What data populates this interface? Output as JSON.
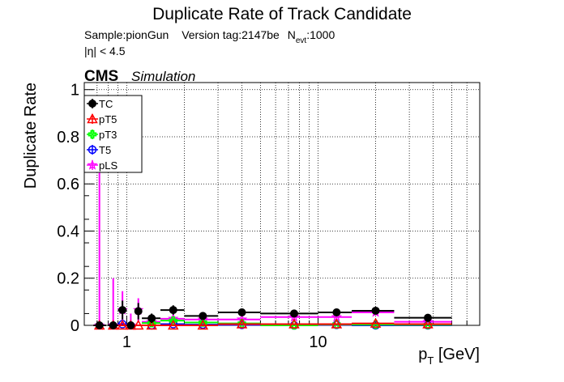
{
  "chart_data": {
    "type": "scatter",
    "title": "Duplicate Rate of Track Candidate",
    "info_line1": {
      "sample": "Sample:pionGun",
      "version": "Version tag:2147be",
      "nevt_prefix": "N",
      "nevt_sub": "evt",
      "nevt_value": ":1000"
    },
    "info_line2": "|η| < 4.5",
    "cms_label": "CMS",
    "cms_sublabel": "Simulation",
    "xlabel": {
      "main": "p",
      "sub": "T",
      "unit": " [GeV]"
    },
    "ylabel": "Duplicate Rate",
    "xscale": "log",
    "xlim": [
      0.6,
      70
    ],
    "ylim": [
      0,
      1.03
    ],
    "grid": true,
    "legend_position": "top-left",
    "x_ticks": [
      {
        "value": 1,
        "label": "1"
      },
      {
        "value": 10,
        "label": "10"
      }
    ],
    "y_ticks": [
      {
        "value": 0,
        "label": "0"
      },
      {
        "value": 0.2,
        "label": "0.2"
      },
      {
        "value": 0.4,
        "label": "0.4"
      },
      {
        "value": 0.6,
        "label": "0.6"
      },
      {
        "value": 0.8,
        "label": "0.8"
      },
      {
        "value": 1,
        "label": "1"
      }
    ],
    "series": [
      {
        "name": "TC",
        "color": "#000000",
        "marker": "filled-circle",
        "points": [
          {
            "x": 0.72,
            "xlo": 0.67,
            "xhi": 0.78,
            "y": 0.0,
            "err": 0.0
          },
          {
            "x": 0.85,
            "xlo": 0.8,
            "xhi": 0.9,
            "y": 0.0,
            "err": 0.0
          },
          {
            "x": 0.95,
            "xlo": 0.9,
            "xhi": 1.0,
            "y": 0.065,
            "err": 0.04
          },
          {
            "x": 1.05,
            "xlo": 1.0,
            "xhi": 1.1,
            "y": 0.0,
            "err": 0.0
          },
          {
            "x": 1.15,
            "xlo": 1.1,
            "xhi": 1.2,
            "y": 0.06,
            "err": 0.035
          },
          {
            "x": 1.35,
            "xlo": 1.2,
            "xhi": 1.5,
            "y": 0.03,
            "err": 0.02
          },
          {
            "x": 1.75,
            "xlo": 1.5,
            "xhi": 2.0,
            "y": 0.065,
            "err": 0.02
          },
          {
            "x": 2.5,
            "xlo": 2.0,
            "xhi": 3.0,
            "y": 0.04,
            "err": 0.012
          },
          {
            "x": 4.0,
            "xlo": 3.0,
            "xhi": 5.0,
            "y": 0.055,
            "err": 0.01
          },
          {
            "x": 7.5,
            "xlo": 5.0,
            "xhi": 10.0,
            "y": 0.05,
            "err": 0.008
          },
          {
            "x": 12.5,
            "xlo": 10.0,
            "xhi": 15.0,
            "y": 0.055,
            "err": 0.008
          },
          {
            "x": 20.0,
            "xlo": 15.0,
            "xhi": 25.0,
            "y": 0.062,
            "err": 0.008
          },
          {
            "x": 37.5,
            "xlo": 25.0,
            "xhi": 50.0,
            "y": 0.032,
            "err": 0.006
          }
        ]
      },
      {
        "name": "pT5",
        "color": "#ff0000",
        "marker": "open-triangle",
        "points": [
          {
            "x": 0.72,
            "xlo": 0.67,
            "xhi": 0.78,
            "y": 0.0,
            "err": 0.0
          },
          {
            "x": 0.85,
            "xlo": 0.8,
            "xhi": 0.9,
            "y": 0.0,
            "err": 0.0
          },
          {
            "x": 0.95,
            "xlo": 0.9,
            "xhi": 1.0,
            "y": 0.0,
            "err": 0.0
          },
          {
            "x": 1.05,
            "xlo": 1.0,
            "xhi": 1.1,
            "y": 0.0,
            "err": 0.0
          },
          {
            "x": 1.15,
            "xlo": 1.1,
            "xhi": 1.2,
            "y": 0.0,
            "err": 0.0
          },
          {
            "x": 1.35,
            "xlo": 1.2,
            "xhi": 1.5,
            "y": 0.0,
            "err": 0.0
          },
          {
            "x": 1.75,
            "xlo": 1.5,
            "xhi": 2.0,
            "y": 0.0,
            "err": 0.0
          },
          {
            "x": 2.5,
            "xlo": 2.0,
            "xhi": 3.0,
            "y": 0.0,
            "err": 0.0
          },
          {
            "x": 4.0,
            "xlo": 3.0,
            "xhi": 5.0,
            "y": 0.005,
            "err": 0.0
          },
          {
            "x": 7.5,
            "xlo": 5.0,
            "xhi": 10.0,
            "y": 0.005,
            "err": 0.0
          },
          {
            "x": 12.5,
            "xlo": 10.0,
            "xhi": 15.0,
            "y": 0.005,
            "err": 0.0
          },
          {
            "x": 20.0,
            "xlo": 15.0,
            "xhi": 25.0,
            "y": 0.008,
            "err": 0.0
          },
          {
            "x": 37.5,
            "xlo": 25.0,
            "xhi": 50.0,
            "y": 0.005,
            "err": 0.0
          }
        ]
      },
      {
        "name": "pT3",
        "color": "#00ff00",
        "marker": "open-cross",
        "points": [
          {
            "x": 1.35,
            "xlo": 1.2,
            "xhi": 1.5,
            "y": 0.01,
            "err": 0.008
          },
          {
            "x": 1.75,
            "xlo": 1.5,
            "xhi": 2.0,
            "y": 0.02,
            "err": 0.01
          },
          {
            "x": 2.5,
            "xlo": 2.0,
            "xhi": 3.0,
            "y": 0.012,
            "err": 0.005
          },
          {
            "x": 4.0,
            "xlo": 3.0,
            "xhi": 5.0,
            "y": 0.008,
            "err": 0.004
          },
          {
            "x": 7.5,
            "xlo": 5.0,
            "xhi": 10.0,
            "y": 0.0,
            "err": 0.0
          },
          {
            "x": 12.5,
            "xlo": 10.0,
            "xhi": 15.0,
            "y": 0.004,
            "err": 0.002
          },
          {
            "x": 20.0,
            "xlo": 15.0,
            "xhi": 25.0,
            "y": 0.003,
            "err": 0.002
          },
          {
            "x": 37.5,
            "xlo": 25.0,
            "xhi": 50.0,
            "y": 0.002,
            "err": 0.001
          }
        ]
      },
      {
        "name": "T5",
        "color": "#0000ff",
        "marker": "open-circle",
        "points": [
          {
            "x": 0.95,
            "xlo": 0.9,
            "xhi": 1.0,
            "y": 0.005,
            "err": 0.0
          },
          {
            "x": 1.35,
            "xlo": 1.2,
            "xhi": 1.5,
            "y": 0.0,
            "err": 0.0
          },
          {
            "x": 1.75,
            "xlo": 1.5,
            "xhi": 2.0,
            "y": 0.005,
            "err": 0.0
          },
          {
            "x": 2.5,
            "xlo": 2.0,
            "xhi": 3.0,
            "y": 0.003,
            "err": 0.0
          },
          {
            "x": 4.0,
            "xlo": 3.0,
            "xhi": 5.0,
            "y": 0.002,
            "err": 0.0
          },
          {
            "x": 7.5,
            "xlo": 5.0,
            "xhi": 10.0,
            "y": 0.0,
            "err": 0.0
          },
          {
            "x": 12.5,
            "xlo": 10.0,
            "xhi": 15.0,
            "y": 0.002,
            "err": 0.0
          },
          {
            "x": 20.0,
            "xlo": 15.0,
            "xhi": 25.0,
            "y": 0.0,
            "err": 0.0
          },
          {
            "x": 37.5,
            "xlo": 25.0,
            "xhi": 50.0,
            "y": 0.0,
            "err": 0.0
          }
        ]
      },
      {
        "name": "pLS",
        "color": "#ff00ff",
        "marker": "open-star",
        "points": [
          {
            "x": 0.72,
            "xlo": 0.67,
            "xhi": 0.78,
            "y": 0.0,
            "err": 0.65
          },
          {
            "x": 0.85,
            "xlo": 0.8,
            "xhi": 0.9,
            "y": 0.0,
            "err": 0.2
          },
          {
            "x": 0.95,
            "xlo": 0.9,
            "xhi": 1.0,
            "y": 0.065,
            "err": 0.08
          },
          {
            "x": 1.05,
            "xlo": 1.0,
            "xhi": 1.1,
            "y": 0.0,
            "err": 0.05
          },
          {
            "x": 1.15,
            "xlo": 1.1,
            "xhi": 1.2,
            "y": 0.065,
            "err": 0.05
          },
          {
            "x": 1.35,
            "xlo": 1.2,
            "xhi": 1.5,
            "y": 0.015,
            "err": 0.01
          },
          {
            "x": 1.75,
            "xlo": 1.5,
            "xhi": 2.0,
            "y": 0.028,
            "err": 0.012
          },
          {
            "x": 2.5,
            "xlo": 2.0,
            "xhi": 3.0,
            "y": 0.025,
            "err": 0.008
          },
          {
            "x": 4.0,
            "xlo": 3.0,
            "xhi": 5.0,
            "y": 0.025,
            "err": 0.006
          },
          {
            "x": 7.5,
            "xlo": 5.0,
            "xhi": 10.0,
            "y": 0.035,
            "err": 0.006
          },
          {
            "x": 12.5,
            "xlo": 10.0,
            "xhi": 15.0,
            "y": 0.035,
            "err": 0.006
          },
          {
            "x": 20.0,
            "xlo": 15.0,
            "xhi": 25.0,
            "y": 0.055,
            "err": 0.007
          },
          {
            "x": 37.5,
            "xlo": 25.0,
            "xhi": 50.0,
            "y": 0.015,
            "err": 0.004
          }
        ]
      }
    ]
  }
}
